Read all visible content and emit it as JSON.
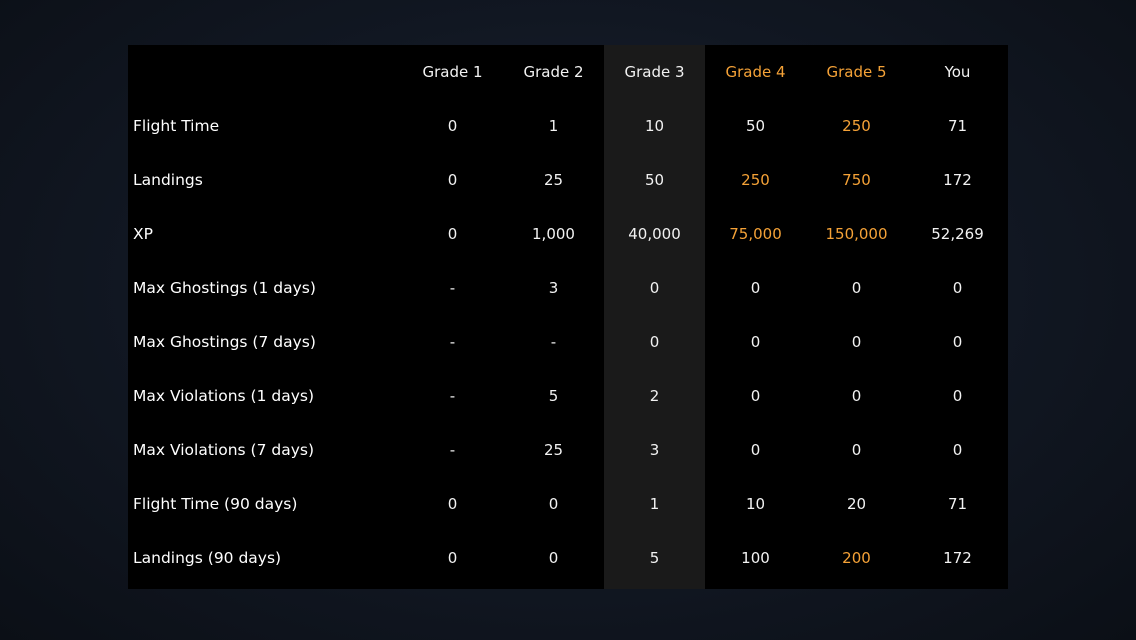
{
  "table": {
    "columns": [
      {
        "label": "Grade 1",
        "accent": false
      },
      {
        "label": "Grade 2",
        "accent": false
      },
      {
        "label": "Grade 3",
        "accent": false
      },
      {
        "label": "Grade 4",
        "accent": true
      },
      {
        "label": "Grade 5",
        "accent": true
      },
      {
        "label": "You",
        "accent": false
      }
    ],
    "rows": [
      {
        "label": "Flight Time",
        "values": [
          "0",
          "1",
          "10",
          "50",
          "250",
          "71"
        ],
        "accent": [
          false,
          false,
          false,
          false,
          true,
          false
        ]
      },
      {
        "label": "Landings",
        "values": [
          "0",
          "25",
          "50",
          "250",
          "750",
          "172"
        ],
        "accent": [
          false,
          false,
          false,
          true,
          true,
          false
        ]
      },
      {
        "label": "XP",
        "values": [
          "0",
          "1,000",
          "40,000",
          "75,000",
          "150,000",
          "52,269"
        ],
        "accent": [
          false,
          false,
          false,
          true,
          true,
          false
        ]
      },
      {
        "label": "Max Ghostings (1 days)",
        "values": [
          "-",
          "3",
          "0",
          "0",
          "0",
          "0"
        ],
        "accent": [
          false,
          false,
          false,
          false,
          false,
          false
        ]
      },
      {
        "label": "Max Ghostings (7 days)",
        "values": [
          "-",
          "-",
          "0",
          "0",
          "0",
          "0"
        ],
        "accent": [
          false,
          false,
          false,
          false,
          false,
          false
        ]
      },
      {
        "label": "Max Violations (1 days)",
        "values": [
          "-",
          "5",
          "2",
          "0",
          "0",
          "0"
        ],
        "accent": [
          false,
          false,
          false,
          false,
          false,
          false
        ]
      },
      {
        "label": "Max Violations (7 days)",
        "values": [
          "-",
          "25",
          "3",
          "0",
          "0",
          "0"
        ],
        "accent": [
          false,
          false,
          false,
          false,
          false,
          false
        ]
      },
      {
        "label": "Flight Time (90 days)",
        "values": [
          "0",
          "0",
          "1",
          "10",
          "20",
          "71"
        ],
        "accent": [
          false,
          false,
          false,
          false,
          false,
          false
        ]
      },
      {
        "label": "Landings (90 days)",
        "values": [
          "0",
          "0",
          "5",
          "100",
          "200",
          "172"
        ],
        "accent": [
          false,
          false,
          false,
          false,
          true,
          false
        ]
      }
    ]
  },
  "colors": {
    "accent": "#f5a237",
    "panel": "#000000",
    "highlight_column": "#1a1a1a"
  }
}
